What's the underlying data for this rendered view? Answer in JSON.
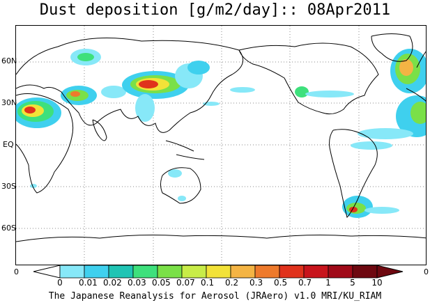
{
  "title": "Dust deposition [g/m2/day]:: 08Apr2011",
  "footer": "The Japanese Reanalysis for Aerosol (JRAero) v1.0 MRI/KU_RIAM",
  "lat_labels": [
    "60N",
    "30N",
    "EQ",
    "30S",
    "60S"
  ],
  "frame_labels": {
    "left_bottom": "0",
    "right_bottom": "0"
  },
  "colorbar": {
    "labels": [
      "0",
      "0.01",
      "0.02",
      "0.03",
      "0.05",
      "0.07",
      "0.1",
      "0.2",
      "0.3",
      "0.5",
      "0.7",
      "1",
      "5",
      "10"
    ],
    "colors": [
      "#ffffff",
      "#87e8f8",
      "#3fd0ee",
      "#20c4b4",
      "#3ee07c",
      "#7ae048",
      "#c8ec48",
      "#f2e238",
      "#f4b444",
      "#ee7a2c",
      "#e0321c",
      "#c8141c",
      "#a00a18",
      "#6e0810"
    ]
  },
  "colors": {
    "land_outline": "#000000",
    "grid": "#888888"
  }
}
